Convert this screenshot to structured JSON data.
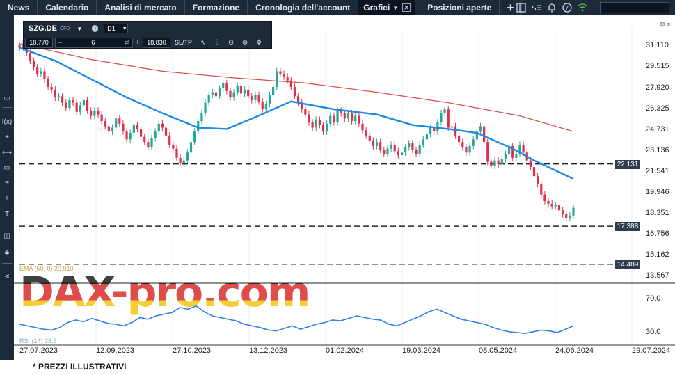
{
  "nav": {
    "tabs": [
      "News",
      "Calendario",
      "Analisi di mercato",
      "Formazione",
      "Cronologia dell'account"
    ],
    "active_tab": "Grafici",
    "after_tab": "Posizioni aperte",
    "plus": "+"
  },
  "symbol_bar": {
    "symbol": "SZG.DE",
    "type": "CFD",
    "timeframe": "D1",
    "sell_price": "18.770",
    "quantity": "6",
    "buy_price": "18.830",
    "sltp": "SL/TP"
  },
  "price_axis": [
    "31.110",
    "29.515",
    "27.920",
    "26.325",
    "24.731",
    "23.136",
    "21.541",
    "19.946",
    "18.351",
    "16.756",
    "15.162",
    "13.567"
  ],
  "price_tags": [
    {
      "value": "22.131",
      "level": 22.131
    },
    {
      "value": "17.388",
      "level": 17.388
    },
    {
      "value": "14.489",
      "level": 14.489
    }
  ],
  "rsi_axis": [
    "70.0",
    "30.0"
  ],
  "date_axis": [
    "27.07.2023",
    "12.09.2023",
    "27.10.2023",
    "13.12.2023",
    "01.02.2024",
    "19.03.2024",
    "08.05.2024",
    "24.06.2024",
    "29.07.2024"
  ],
  "ema_legend": "EMA (50, 0) 20.910",
  "rsi_legend": "RSI (14) 38.5",
  "watermark": "DAX-pro.com",
  "footnote": "* PREZZI ILLUSTRATIVI",
  "colors": {
    "up": "#26a69a",
    "down": "#e0304a",
    "ema50": "#1e88e5",
    "ema200": "#d9493e",
    "rsi": "#2f80ed",
    "nav_bg": "#1c2a3a"
  },
  "chart_data": {
    "type": "candlestick",
    "price_range": [
      13.2,
      32.3
    ],
    "horizontal_levels": [
      22.131,
      17.388,
      14.489
    ],
    "closes": [
      31.0,
      31.3,
      30.6,
      30.0,
      29.5,
      29.0,
      29.2,
      28.6,
      28.0,
      27.8,
      27.2,
      27.3,
      26.8,
      26.4,
      27.0,
      26.8,
      26.1,
      26.6,
      27.0,
      26.2,
      25.8,
      26.2,
      25.9,
      25.4,
      25.0,
      24.6,
      24.9,
      25.6,
      25.2,
      24.6,
      24.0,
      24.5,
      25.1,
      24.8,
      24.2,
      23.8,
      23.4,
      24.1,
      24.6,
      25.2,
      24.9,
      24.3,
      23.6,
      23.3,
      22.6,
      22.2,
      22.4,
      23.0,
      23.8,
      24.6,
      25.4,
      26.0,
      26.8,
      27.4,
      27.6,
      27.3,
      27.9,
      28.3,
      27.7,
      27.2,
      27.6,
      28.1,
      27.5,
      27.8,
      27.3,
      27.0,
      27.4,
      26.9,
      26.3,
      26.7,
      27.4,
      28.0,
      29.2,
      29.0,
      28.8,
      28.5,
      28.0,
      27.3,
      26.8,
      26.3,
      25.9,
      25.3,
      24.9,
      25.5,
      25.1,
      24.6,
      25.2,
      25.8,
      25.3,
      26.2,
      26.0,
      25.6,
      26.0,
      25.4,
      25.8,
      25.2,
      24.7,
      24.3,
      23.9,
      23.5,
      23.8,
      23.2,
      22.9,
      23.3,
      23.6,
      23.1,
      22.8,
      23.0,
      23.4,
      23.7,
      23.2,
      22.9,
      23.6,
      24.0,
      24.4,
      24.9,
      24.6,
      25.3,
      26.0,
      26.3,
      24.9,
      25.0,
      24.3,
      23.8,
      23.4,
      23.0,
      23.5,
      24.0,
      24.6,
      25.0,
      23.8,
      22.3,
      22.0,
      22.4,
      22.1,
      22.5,
      22.9,
      23.5,
      22.6,
      22.9,
      23.6,
      23.0,
      22.4,
      21.9,
      21.2,
      20.6,
      19.8,
      19.3,
      19.1,
      18.9,
      19.0,
      18.6,
      18.3,
      18.0,
      18.2,
      18.8
    ],
    "ema50_points": [
      [
        0,
        31.0
      ],
      [
        10,
        30.0
      ],
      [
        20,
        28.6
      ],
      [
        30,
        27.2
      ],
      [
        40,
        26.0
      ],
      [
        50,
        24.9
      ],
      [
        58,
        24.8
      ],
      [
        66,
        25.7
      ],
      [
        76,
        26.9
      ],
      [
        88,
        26.3
      ],
      [
        100,
        25.9
      ],
      [
        110,
        25.1
      ],
      [
        120,
        24.8
      ],
      [
        128,
        24.5
      ],
      [
        138,
        23.3
      ],
      [
        144,
        22.4
      ],
      [
        155,
        21.0
      ]
    ],
    "ema200_points": [
      [
        0,
        31.3
      ],
      [
        20,
        30.1
      ],
      [
        40,
        29.2
      ],
      [
        60,
        28.7
      ],
      [
        80,
        28.3
      ],
      [
        100,
        27.6
      ],
      [
        120,
        26.8
      ],
      [
        140,
        25.8
      ],
      [
        155,
        24.6
      ]
    ],
    "rsi_values": [
      40,
      38,
      36,
      34,
      33,
      36,
      42,
      45,
      43,
      47,
      44,
      41,
      40,
      38,
      42,
      48,
      46,
      50,
      52,
      54,
      60,
      58,
      62,
      55,
      50,
      48,
      46,
      44,
      40,
      38,
      36,
      33,
      32,
      35,
      38,
      34,
      37,
      40,
      42,
      45,
      44,
      47,
      50,
      48,
      46,
      45,
      40,
      38,
      42,
      46,
      50,
      55,
      58,
      54,
      50,
      46,
      44,
      42,
      40,
      36,
      33,
      31,
      30,
      29,
      31,
      33,
      32,
      30,
      34,
      38
    ],
    "rsi_range": [
      20,
      80
    ],
    "date_ticks": [
      "27.07.2023",
      "12.09.2023",
      "27.10.2023",
      "13.12.2023",
      "01.02.2024",
      "19.03.2024",
      "08.05.2024",
      "24.06.2024",
      "29.07.2024"
    ]
  }
}
